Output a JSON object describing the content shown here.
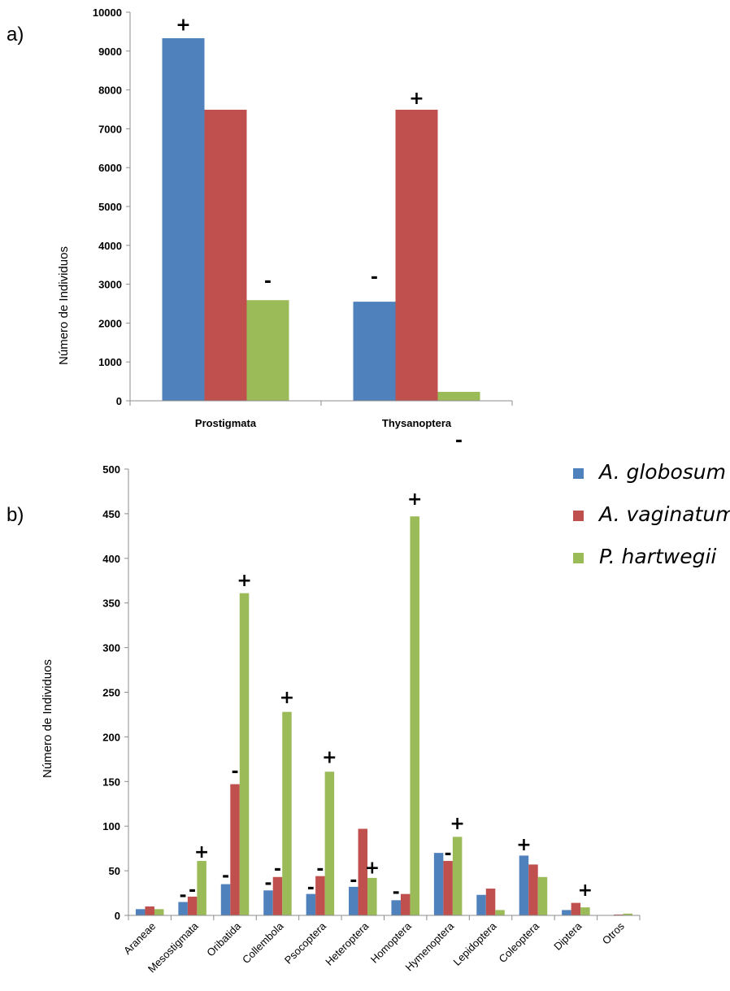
{
  "colors": {
    "A. globosum": "#4F81BD",
    "A. vaginatum": "#C0504D",
    "P. hartwegii": "#9BBB59",
    "axis": "#8c8c8c"
  },
  "legend": {
    "placement": "right of panel b",
    "entries": [
      "A. globosum",
      "A. vaginatum",
      "P. hartwegii"
    ]
  },
  "chart_data": [
    {
      "type": "bar",
      "panel_label": "a)",
      "ylabel": "Número de Individuos",
      "ylim": [
        0,
        10000
      ],
      "yticks": [
        0,
        1000,
        2000,
        3000,
        4000,
        5000,
        6000,
        7000,
        8000,
        9000,
        10000
      ],
      "categories": [
        "Prostigmata",
        "Thysanoptera"
      ],
      "series": [
        {
          "name": "A. globosum",
          "values": [
            9330,
            2550
          ]
        },
        {
          "name": "A. vaginatum",
          "values": [
            7490,
            7490
          ]
        },
        {
          "name": "P. hartwegii",
          "values": [
            2590,
            230
          ]
        }
      ],
      "annotations": [
        {
          "category": "Prostigmata",
          "series": "A. globosum",
          "text": "+",
          "above_value": 9700
        },
        {
          "category": "Prostigmata",
          "series": "P. hartwegii",
          "text": "-",
          "above_value": 3100
        },
        {
          "category": "Thysanoptera",
          "series": "A. globosum",
          "text": "-",
          "above_value": 3200
        },
        {
          "category": "Thysanoptera",
          "series": "A. vaginatum",
          "text": "+",
          "above_value": 7800
        },
        {
          "category": "Thysanoptera",
          "series": "P. hartwegii",
          "text": "-",
          "above_value": -1000
        }
      ]
    },
    {
      "type": "bar",
      "panel_label": "b)",
      "ylabel": "Número de Individuos",
      "ylim": [
        0,
        500
      ],
      "yticks": [
        0,
        50,
        100,
        150,
        200,
        250,
        300,
        350,
        400,
        450,
        500
      ],
      "categories": [
        "Araneae",
        "Mesostigmata",
        "Oribatida",
        "Collembola",
        "Psocoptera",
        "Heteroptera",
        "Homoptera",
        "Hymenoptera",
        "Lepidoptera",
        "Coleoptera",
        "Diptera",
        "Otros"
      ],
      "series": [
        {
          "name": "A. globosum",
          "values": [
            7,
            15,
            35,
            28,
            24,
            32,
            17,
            70,
            23,
            67,
            6,
            0
          ]
        },
        {
          "name": "A. vaginatum",
          "values": [
            10,
            21,
            147,
            43,
            44,
            97,
            24,
            61,
            30,
            57,
            14,
            1
          ]
        },
        {
          "name": "P. hartwegii",
          "values": [
            7,
            61,
            361,
            228,
            161,
            42,
            447,
            88,
            6,
            43,
            9,
            2
          ]
        }
      ],
      "annotations": [
        {
          "category": "Mesostigmata",
          "series": "A. globosum",
          "text": "-",
          "above_value": 23
        },
        {
          "category": "Mesostigmata",
          "series": "A. vaginatum",
          "text": "-",
          "above_value": 29
        },
        {
          "category": "Mesostigmata",
          "series": "P. hartwegii",
          "text": "+",
          "above_value": 72
        },
        {
          "category": "Oribatida",
          "series": "A. globosum",
          "text": "-",
          "above_value": 45
        },
        {
          "category": "Oribatida",
          "series": "A. vaginatum",
          "text": "-",
          "above_value": 162
        },
        {
          "category": "Oribatida",
          "series": "P. hartwegii",
          "text": "+",
          "above_value": 376
        },
        {
          "category": "Collembola",
          "series": "A. globosum",
          "text": "-",
          "above_value": 37
        },
        {
          "category": "Collembola",
          "series": "A. vaginatum",
          "text": "-",
          "above_value": 53
        },
        {
          "category": "Collembola",
          "series": "P. hartwegii",
          "text": "+",
          "above_value": 245
        },
        {
          "category": "Psocoptera",
          "series": "A. globosum",
          "text": "-",
          "above_value": 32
        },
        {
          "category": "Psocoptera",
          "series": "A. vaginatum",
          "text": "-",
          "above_value": 53
        },
        {
          "category": "Psocoptera",
          "series": "P. hartwegii",
          "text": "+",
          "above_value": 178
        },
        {
          "category": "Heteroptera",
          "series": "A. globosum",
          "text": "-",
          "above_value": 40
        },
        {
          "category": "Heteroptera",
          "series": "P. hartwegii",
          "text": "+",
          "above_value": 54
        },
        {
          "category": "Homoptera",
          "series": "A. globosum",
          "text": "-",
          "above_value": 27
        },
        {
          "category": "Homoptera",
          "series": "P. hartwegii",
          "text": "+",
          "above_value": 467
        },
        {
          "category": "Hymenoptera",
          "series": "A. vaginatum",
          "text": "-",
          "above_value": 70
        },
        {
          "category": "Hymenoptera",
          "series": "P. hartwegii",
          "text": "+",
          "above_value": 104
        },
        {
          "category": "Coleoptera",
          "series": "A. globosum",
          "text": "+",
          "above_value": 80
        },
        {
          "category": "Diptera",
          "series": "P. hartwegii",
          "text": "+",
          "above_value": 29
        }
      ]
    }
  ]
}
